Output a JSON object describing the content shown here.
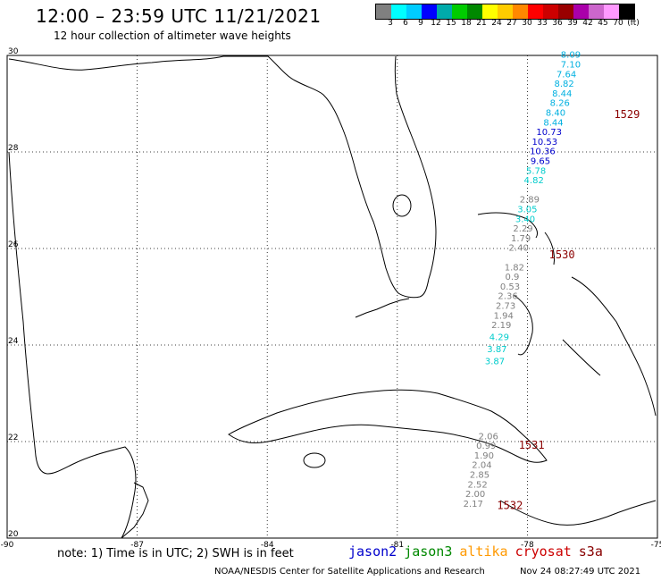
{
  "header": {
    "title": "12:00 – 23:59 UTC 11/21/2021",
    "subtitle": "12 hour collection of altimeter wave heights"
  },
  "colorbar": {
    "colors": [
      "#808080",
      "#00ffff",
      "#00ccff",
      "#0000ff",
      "#00aaaa",
      "#00cc00",
      "#008800",
      "#ffff00",
      "#ffcc00",
      "#ff8800",
      "#ff0000",
      "#cc0000",
      "#990000",
      "#aa00aa",
      "#cc66cc",
      "#ff99ff",
      "#000000"
    ],
    "labels": [
      "3",
      "6",
      "9",
      "12",
      "15",
      "18",
      "21",
      "24",
      "27",
      "30",
      "33",
      "36",
      "39",
      "42",
      "45",
      "70",
      "(ft)"
    ]
  },
  "map": {
    "lon_ticks": [
      "-90",
      "-87",
      "-84",
      "-81",
      "-78",
      "-75"
    ],
    "lat_ticks": [
      "30",
      "28",
      "26",
      "24",
      "22",
      "20"
    ],
    "lon_range": [
      -90,
      -75
    ],
    "lat_range": [
      20,
      30
    ]
  },
  "track_values": [
    {
      "v": "8.09",
      "c": "#00b0e0",
      "lon": -77.0,
      "lat": 29.95
    },
    {
      "v": "7.10",
      "c": "#00b0e0",
      "lon": -77.0,
      "lat": 29.75
    },
    {
      "v": "7.64",
      "c": "#00b0e0",
      "lon": -77.1,
      "lat": 29.55
    },
    {
      "v": "8.82",
      "c": "#00b0e0",
      "lon": -77.15,
      "lat": 29.35
    },
    {
      "v": "8.44",
      "c": "#00b0e0",
      "lon": -77.2,
      "lat": 29.15
    },
    {
      "v": "8.26",
      "c": "#00b0e0",
      "lon": -77.25,
      "lat": 28.95
    },
    {
      "v": "8.40",
      "c": "#00b0e0",
      "lon": -77.35,
      "lat": 28.75
    },
    {
      "v": "8.44",
      "c": "#00b0e0",
      "lon": -77.4,
      "lat": 28.55
    },
    {
      "v": "10.73",
      "c": "#0000cc",
      "lon": -77.5,
      "lat": 28.35
    },
    {
      "v": "10.53",
      "c": "#0000cc",
      "lon": -77.6,
      "lat": 28.15
    },
    {
      "v": "10.36",
      "c": "#0000cc",
      "lon": -77.65,
      "lat": 27.95
    },
    {
      "v": "9.65",
      "c": "#0000cc",
      "lon": -77.7,
      "lat": 27.75
    },
    {
      "v": "5.78",
      "c": "#00cccc",
      "lon": -77.8,
      "lat": 27.55
    },
    {
      "v": "4.82",
      "c": "#00cccc",
      "lon": -77.85,
      "lat": 27.35
    },
    {
      "v": "2.89",
      "c": "#808080",
      "lon": -77.95,
      "lat": 26.95
    },
    {
      "v": "3.05",
      "c": "#00cccc",
      "lon": -78.0,
      "lat": 26.75
    },
    {
      "v": "3.40",
      "c": "#00cccc",
      "lon": -78.05,
      "lat": 26.55
    },
    {
      "v": "2.29",
      "c": "#808080",
      "lon": -78.1,
      "lat": 26.35
    },
    {
      "v": "1.79",
      "c": "#808080",
      "lon": -78.15,
      "lat": 26.15
    },
    {
      "v": "2.40",
      "c": "#808080",
      "lon": -78.2,
      "lat": 25.95
    },
    {
      "v": "1.82",
      "c": "#808080",
      "lon": -78.3,
      "lat": 25.55
    },
    {
      "v": "0.9",
      "c": "#808080",
      "lon": -78.35,
      "lat": 25.35
    },
    {
      "v": "0.53",
      "c": "#808080",
      "lon": -78.4,
      "lat": 25.15
    },
    {
      "v": "2.36",
      "c": "#808080",
      "lon": -78.45,
      "lat": 24.95
    },
    {
      "v": "2.73",
      "c": "#808080",
      "lon": -78.5,
      "lat": 24.75
    },
    {
      "v": "1.94",
      "c": "#808080",
      "lon": -78.55,
      "lat": 24.55
    },
    {
      "v": "2.19",
      "c": "#808080",
      "lon": -78.6,
      "lat": 24.35
    },
    {
      "v": "4.29",
      "c": "#00cccc",
      "lon": -78.65,
      "lat": 24.1
    },
    {
      "v": "3.87",
      "c": "#00cccc",
      "lon": -78.7,
      "lat": 23.85
    },
    {
      "v": "3.87",
      "c": "#00cccc",
      "lon": -78.75,
      "lat": 23.6
    },
    {
      "v": "2.06",
      "c": "#808080",
      "lon": -78.9,
      "lat": 22.05
    },
    {
      "v": "0.99",
      "c": "#808080",
      "lon": -78.95,
      "lat": 21.85
    },
    {
      "v": "1.90",
      "c": "#808080",
      "lon": -79.0,
      "lat": 21.65
    },
    {
      "v": "2.04",
      "c": "#808080",
      "lon": -79.05,
      "lat": 21.45
    },
    {
      "v": "2.85",
      "c": "#808080",
      "lon": -79.1,
      "lat": 21.25
    },
    {
      "v": "2.52",
      "c": "#808080",
      "lon": -79.15,
      "lat": 21.05
    },
    {
      "v": "2.00",
      "c": "#808080",
      "lon": -79.2,
      "lat": 20.85
    },
    {
      "v": "2.17",
      "c": "#808080",
      "lon": -79.25,
      "lat": 20.65
    }
  ],
  "pass_labels": [
    {
      "v": "1529",
      "lon": -76.0,
      "lat": 28.7
    },
    {
      "v": "1530",
      "lon": -77.5,
      "lat": 25.8
    },
    {
      "v": "1531",
      "lon": -78.2,
      "lat": 21.85
    },
    {
      "v": "1532",
      "lon": -78.7,
      "lat": 20.6
    }
  ],
  "note": "note:  1) Time is in UTC;  2) SWH is in feet",
  "legend": [
    {
      "name": "jason2",
      "color": "#0000cc"
    },
    {
      "name": "jason3",
      "color": "#008800"
    },
    {
      "name": "altika",
      "color": "#ff9900"
    },
    {
      "name": "cryosat",
      "color": "#cc0000"
    },
    {
      "name": "s3a",
      "color": "#880000"
    }
  ],
  "footer": "NOAA/NESDIS Center for Satellite Applications and Research",
  "timestamp": "Nov 24 08:27:49 UTC 2021"
}
